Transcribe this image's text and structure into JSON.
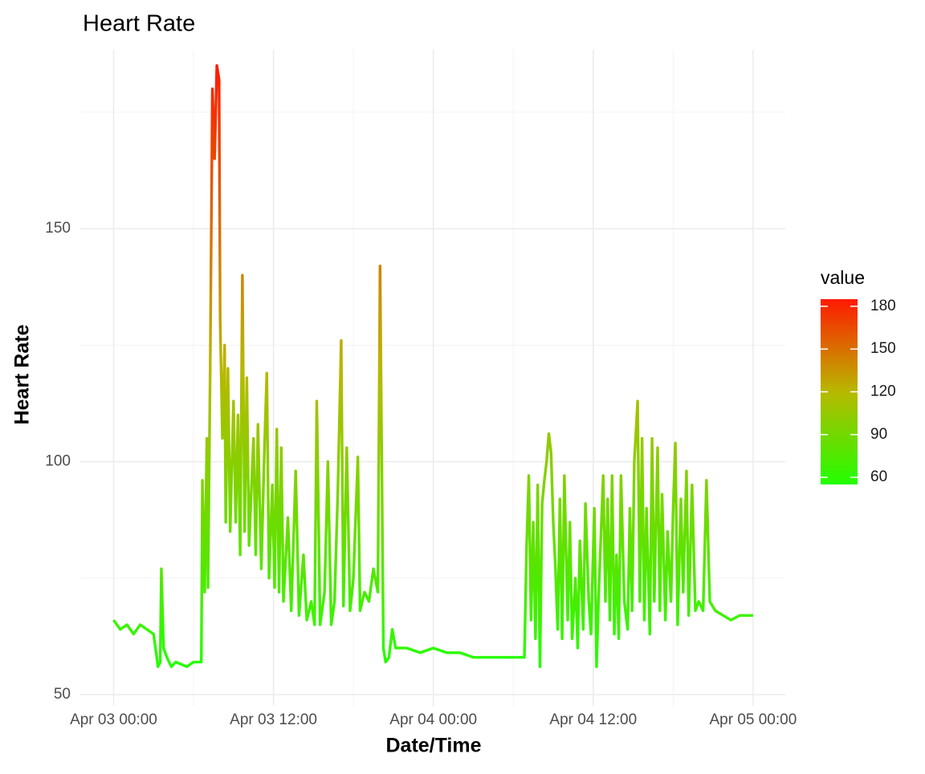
{
  "chart_data": {
    "type": "line",
    "title": "Heart Rate",
    "x_label": "Date/Time",
    "y_label": "Heart Rate",
    "x": [
      "Apr 03 00:00",
      "Apr 03 00:30",
      "Apr 03 01:00",
      "Apr 03 01:30",
      "Apr 03 02:00",
      "Apr 03 02:30",
      "Apr 03 03:00",
      "Apr 03 03:20",
      "Apr 03 03:30",
      "Apr 03 03:35",
      "Apr 03 03:45",
      "Apr 03 04:00",
      "Apr 03 04:20",
      "Apr 03 04:40",
      "Apr 03 05:30",
      "Apr 03 06:00",
      "Apr 03 06:35",
      "Apr 03 06:40",
      "Apr 03 06:50",
      "Apr 03 07:00",
      "Apr 03 07:05",
      "Apr 03 07:15",
      "Apr 03 07:20",
      "Apr 03 07:25",
      "Apr 03 07:35",
      "Apr 03 07:45",
      "Apr 03 07:55",
      "Apr 03 08:00",
      "Apr 03 08:10",
      "Apr 03 08:20",
      "Apr 03 08:25",
      "Apr 03 08:35",
      "Apr 03 08:45",
      "Apr 03 09:00",
      "Apr 03 09:10",
      "Apr 03 09:20",
      "Apr 03 09:30",
      "Apr 03 09:40",
      "Apr 03 09:50",
      "Apr 03 10:00",
      "Apr 03 10:10",
      "Apr 03 10:30",
      "Apr 03 10:40",
      "Apr 03 10:50",
      "Apr 03 11:05",
      "Apr 03 11:20",
      "Apr 03 11:30",
      "Apr 03 11:40",
      "Apr 03 11:55",
      "Apr 03 12:05",
      "Apr 03 12:15",
      "Apr 03 12:25",
      "Apr 03 12:35",
      "Apr 03 12:45",
      "Apr 03 13:05",
      "Apr 03 13:20",
      "Apr 03 13:40",
      "Apr 03 13:55",
      "Apr 03 14:15",
      "Apr 03 14:30",
      "Apr 03 14:50",
      "Apr 03 15:05",
      "Apr 03 15:15",
      "Apr 03 15:30",
      "Apr 03 15:50",
      "Apr 03 16:05",
      "Apr 03 16:20",
      "Apr 03 16:35",
      "Apr 03 16:50",
      "Apr 03 17:05",
      "Apr 03 17:15",
      "Apr 03 17:30",
      "Apr 03 17:45",
      "Apr 03 18:00",
      "Apr 03 18:20",
      "Apr 03 18:30",
      "Apr 03 18:50",
      "Apr 03 19:10",
      "Apr 03 19:30",
      "Apr 03 19:50",
      "Apr 03 20:00",
      "Apr 03 20:10",
      "Apr 03 20:15",
      "Apr 03 20:25",
      "Apr 03 20:40",
      "Apr 03 20:55",
      "Apr 03 21:10",
      "Apr 03 22:00",
      "Apr 03 23:00",
      "Apr 04 00:00",
      "Apr 04 01:00",
      "Apr 04 02:00",
      "Apr 04 03:00",
      "Apr 04 04:00",
      "Apr 04 05:00",
      "Apr 04 06:00",
      "Apr 04 06:50",
      "Apr 04 07:00",
      "Apr 04 07:10",
      "Apr 04 07:20",
      "Apr 04 07:30",
      "Apr 04 07:40",
      "Apr 04 07:50",
      "Apr 04 08:00",
      "Apr 04 08:10",
      "Apr 04 08:20",
      "Apr 04 08:30",
      "Apr 04 08:40",
      "Apr 04 08:50",
      "Apr 04 09:00",
      "Apr 04 09:10",
      "Apr 04 09:20",
      "Apr 04 09:30",
      "Apr 04 09:40",
      "Apr 04 09:50",
      "Apr 04 10:05",
      "Apr 04 10:15",
      "Apr 04 10:25",
      "Apr 04 10:40",
      "Apr 04 10:50",
      "Apr 04 11:00",
      "Apr 04 11:15",
      "Apr 04 11:25",
      "Apr 04 11:40",
      "Apr 04 11:50",
      "Apr 04 12:05",
      "Apr 04 12:15",
      "Apr 04 12:25",
      "Apr 04 12:45",
      "Apr 04 12:55",
      "Apr 04 13:05",
      "Apr 04 13:15",
      "Apr 04 13:25",
      "Apr 04 13:35",
      "Apr 04 13:45",
      "Apr 04 13:55",
      "Apr 04 14:05",
      "Apr 04 14:20",
      "Apr 04 14:35",
      "Apr 04 14:45",
      "Apr 04 14:55",
      "Apr 04 15:05",
      "Apr 04 15:20",
      "Apr 04 15:30",
      "Apr 04 15:40",
      "Apr 04 15:50",
      "Apr 04 16:00",
      "Apr 04 16:15",
      "Apr 04 16:25",
      "Apr 04 16:35",
      "Apr 04 16:50",
      "Apr 04 17:00",
      "Apr 04 17:10",
      "Apr 04 17:25",
      "Apr 04 17:35",
      "Apr 04 17:50",
      "Apr 04 18:00",
      "Apr 04 18:10",
      "Apr 04 18:20",
      "Apr 04 18:35",
      "Apr 04 18:45",
      "Apr 04 19:00",
      "Apr 04 19:10",
      "Apr 04 19:25",
      "Apr 04 19:40",
      "Apr 04 19:55",
      "Apr 04 20:15",
      "Apr 04 20:30",
      "Apr 04 20:45",
      "Apr 04 21:10",
      "Apr 04 21:45",
      "Apr 04 22:20",
      "Apr 04 23:00",
      "Apr 05 00:00"
    ],
    "values": [
      66,
      64,
      65,
      63,
      65,
      64,
      63,
      56,
      57,
      77,
      60,
      58,
      56,
      57,
      56,
      57,
      57,
      96,
      72,
      105,
      73,
      120,
      150,
      180,
      165,
      185,
      182,
      130,
      105,
      125,
      87,
      120,
      85,
      113,
      87,
      110,
      80,
      140,
      85,
      118,
      82,
      105,
      80,
      108,
      77,
      104,
      119,
      75,
      95,
      73,
      107,
      72,
      103,
      70,
      88,
      68,
      98,
      67,
      80,
      66,
      70,
      65,
      113,
      65,
      72,
      100,
      65,
      70,
      94,
      126,
      69,
      103,
      68,
      75,
      101,
      68,
      72,
      70,
      77,
      72,
      142,
      88,
      60,
      57,
      58,
      64,
      60,
      60,
      59,
      60,
      59,
      59,
      58,
      58,
      58,
      58,
      58,
      82,
      97,
      66,
      87,
      62,
      95,
      56,
      91,
      96,
      100,
      106,
      102,
      87,
      77,
      64,
      92,
      62,
      97,
      66,
      87,
      62,
      75,
      60,
      83,
      64,
      91,
      70,
      63,
      90,
      56,
      72,
      97,
      70,
      92,
      66,
      97,
      63,
      80,
      62,
      97,
      70,
      64,
      90,
      68,
      100,
      113,
      70,
      105,
      66,
      90,
      63,
      105,
      70,
      103,
      68,
      93,
      66,
      85,
      70,
      90,
      104,
      65,
      92,
      72,
      98,
      67,
      95,
      68,
      70,
      68,
      96,
      70,
      68,
      67,
      66,
      67,
      67
    ],
    "xlim": [
      "Apr 02 21:30",
      "Apr 05 02:25"
    ],
    "xticks": [
      "Apr 03 00:00",
      "Apr 03 12:00",
      "Apr 04 00:00",
      "Apr 04 12:00",
      "Apr 05 00:00"
    ],
    "x_minor_ticks": [
      "Apr 03 06:00",
      "Apr 03 18:00",
      "Apr 04 06:00",
      "Apr 04 18:00"
    ],
    "ylim": [
      47.6,
      188.4
    ],
    "yticks": [
      50,
      100,
      150
    ],
    "y_minor_ticks": [
      75,
      125,
      175
    ],
    "grid": true,
    "color_scale": {
      "title": "value",
      "limits": [
        55,
        185
      ],
      "ticks": [
        60,
        90,
        120,
        150,
        180
      ],
      "colors": [
        "#22ff00",
        "#b8b800",
        "#ff1a00"
      ]
    }
  }
}
